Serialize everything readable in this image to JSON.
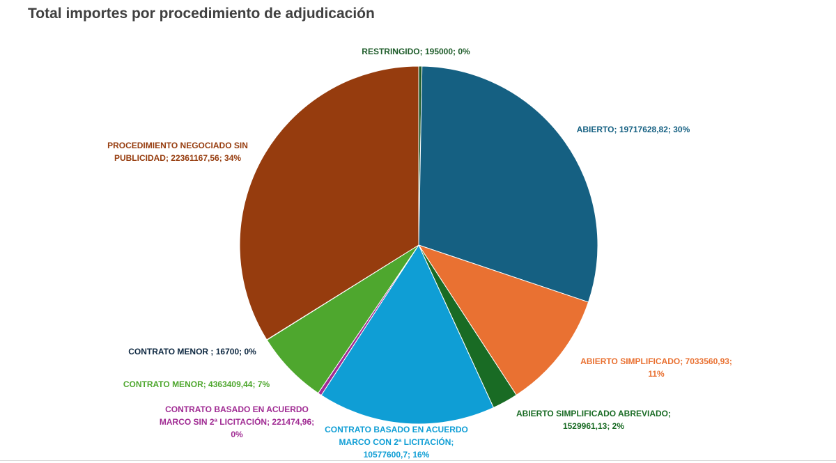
{
  "chart_data": {
    "type": "pie",
    "title": "Total importes por procedimiento de adjudicación",
    "start_angle_deg": 0,
    "direction": "clockwise",
    "slices": [
      {
        "name": "RESTRINGIDO",
        "value": 195000,
        "percent": "0%",
        "color": "#1e5c2a",
        "label_lines": [
          "RESTRINGIDO; 195000; 0%"
        ]
      },
      {
        "name": "ABIERTO",
        "value": 19717628.82,
        "percent": "30%",
        "color": "#156082",
        "label_lines": [
          "ABIERTO; 19717628,82; 30%"
        ]
      },
      {
        "name": "ABIERTO SIMPLIFICADO",
        "value": 7033560.93,
        "percent": "11%",
        "color": "#e97132",
        "label_lines": [
          "ABIERTO SIMPLIFICADO; 7033560,93;",
          "11%"
        ]
      },
      {
        "name": "ABIERTO SIMPLIFICADO ABREVIADO",
        "value": 1529961.13,
        "percent": "2%",
        "color": "#196b24",
        "label_lines": [
          "ABIERTO SIMPLIFICADO ABREVIADO;",
          "1529961,13; 2%"
        ]
      },
      {
        "name": "CONTRATO BASADO EN ACUERDO MARCO CON 2ª LICITACIÓN",
        "value": 10577600.7,
        "percent": "16%",
        "color": "#0f9ed5",
        "label_lines": [
          "CONTRATO BASADO EN ACUERDO",
          "MARCO CON 2ª LICITACIÓN;",
          "10577600,7; 16%"
        ]
      },
      {
        "name": "CONTRATO BASADO EN ACUERDO MARCO SIN 2ª LICITACIÓN",
        "value": 221474.96,
        "percent": "0%",
        "color": "#a02b93",
        "label_lines": [
          "CONTRATO BASADO EN ACUERDO",
          "MARCO SIN 2ª LICITACIÓN; 221474,96;",
          "0%"
        ]
      },
      {
        "name": "CONTRATO MENOR",
        "value": 4363409.44,
        "percent": "7%",
        "color": "#4ea72e",
        "label_lines": [
          "CONTRATO MENOR; 4363409,44; 7%"
        ]
      },
      {
        "name": "CONTRATO MENOR ",
        "value": 16700,
        "percent": "0%",
        "color": "#0e2841",
        "label_lines": [
          "CONTRATO MENOR ; 16700; 0%"
        ]
      },
      {
        "name": "PROCEDIMIENTO NEGOCIADO SIN PUBLICIDAD",
        "value": 22361167.56,
        "percent": "34%",
        "color": "#963c0e",
        "label_lines": [
          "PROCEDIMIENTO NEGOCIADO SIN",
          "PUBLICIDAD; 22361167,56; 34%"
        ]
      }
    ]
  }
}
